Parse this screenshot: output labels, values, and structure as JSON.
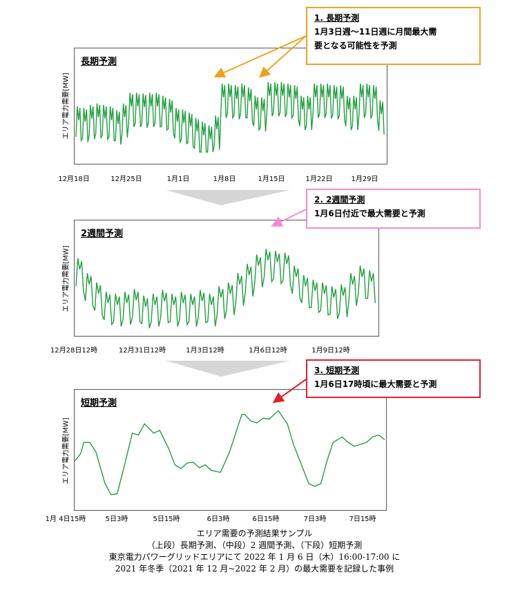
{
  "colors": {
    "series": "#1e9e3e",
    "orange": "#f0a020",
    "pink": "#f08ad8",
    "red": "#e0202a",
    "arrow_grey": "#cccccc"
  },
  "chart_data": [
    {
      "type": "line",
      "title": "長期予測",
      "ylabel": "エリア電力需要[MW]",
      "xlabel": "",
      "x_ticks": [
        "12月18日",
        "12月25日",
        "1月1日",
        "1月8日",
        "1月15日",
        "1月22日",
        "1月29日"
      ],
      "x_range": [
        "12月17日",
        "1月30日"
      ],
      "pattern": "daily cycle, 2 peaks per day; lower in 12/18-1/3, high plateau 1/3-1/11 and 1/11-1/30",
      "series": [
        {
          "daily_peak_rel": [
            0.6,
            0.58,
            0.62,
            0.64,
            0.62,
            0.6,
            0.55,
            0.64,
            0.78,
            0.78,
            0.77,
            0.78,
            0.78,
            0.74,
            0.7,
            0.58,
            0.56,
            0.52,
            0.45,
            0.4,
            0.35,
            0.48,
            0.9,
            0.9,
            0.88,
            0.9,
            0.85,
            0.74,
            0.72,
            0.92,
            0.92,
            0.92,
            0.9,
            0.88,
            0.74,
            0.74,
            0.9,
            0.9,
            0.9,
            0.88,
            0.88,
            0.74,
            0.74,
            0.9,
            0.9,
            0.88,
            0.68
          ]
        }
      ]
    },
    {
      "type": "line",
      "title": "2週間予測",
      "ylabel": "エリア電力需要[MW]",
      "xlabel": "",
      "x_ticks": [
        "12月28日12時",
        "12月31日12時",
        "1月3日12時",
        "1月6日12時",
        "1月9日12時"
      ],
      "series": [
        {
          "daily_peak_rel": [
            0.78,
            0.62,
            0.52,
            0.42,
            0.4,
            0.42,
            0.45,
            0.38,
            0.4,
            0.44,
            0.4,
            0.42,
            0.4,
            0.44,
            0.4,
            0.48,
            0.52,
            0.62,
            0.72,
            0.82,
            0.88,
            0.86,
            0.84,
            0.7,
            0.6,
            0.55,
            0.52,
            0.48,
            0.5,
            0.62,
            0.7,
            0.65
          ]
        }
      ]
    },
    {
      "type": "line",
      "title": "短期予測",
      "ylabel": "エリア電力需要[MW]",
      "xlabel": "",
      "x_ticks": [
        "1月 4日15時",
        "5日3時",
        "5日15時",
        "6日3時",
        "6日15時",
        "7日3時",
        "7日15時"
      ],
      "series": [
        {
          "values_rel": [
            [
              0,
              0.42
            ],
            [
              1,
              0.5
            ],
            [
              1.5,
              0.62
            ],
            [
              2.5,
              0.62
            ],
            [
              3.5,
              0.52
            ],
            [
              5,
              0.18
            ],
            [
              6,
              0.06
            ],
            [
              7,
              0.07
            ],
            [
              8,
              0.32
            ],
            [
              9.5,
              0.72
            ],
            [
              10.5,
              0.7
            ],
            [
              11.5,
              0.82
            ],
            [
              13,
              0.72
            ],
            [
              14,
              0.75
            ],
            [
              15.5,
              0.55
            ],
            [
              16.5,
              0.38
            ],
            [
              17.5,
              0.34
            ],
            [
              18.5,
              0.4
            ],
            [
              19.5,
              0.41
            ],
            [
              20.5,
              0.35
            ],
            [
              21.5,
              0.38
            ],
            [
              22.5,
              0.32
            ],
            [
              24,
              0.3
            ],
            [
              25.5,
              0.52
            ],
            [
              27.5,
              0.92
            ],
            [
              28,
              0.92
            ],
            [
              29,
              0.85
            ],
            [
              30,
              0.83
            ],
            [
              31,
              0.88
            ],
            [
              32,
              0.87
            ],
            [
              33.5,
              0.96
            ],
            [
              35,
              0.82
            ],
            [
              36,
              0.6
            ],
            [
              37.5,
              0.35
            ],
            [
              38.5,
              0.18
            ],
            [
              39.5,
              0.15
            ],
            [
              40.5,
              0.18
            ],
            [
              41.5,
              0.42
            ],
            [
              42.5,
              0.62
            ],
            [
              44,
              0.68
            ],
            [
              45,
              0.62
            ],
            [
              46,
              0.58
            ],
            [
              47,
              0.6
            ],
            [
              48,
              0.62
            ],
            [
              49,
              0.68
            ],
            [
              50,
              0.7
            ],
            [
              51,
              0.65
            ]
          ]
        }
      ]
    }
  ],
  "callouts": [
    {
      "head": "1. 長期予測",
      "lines": [
        "1月3日週～11日週に月間最大需",
        "要となる可能性を予測"
      ]
    },
    {
      "head": "2. 2週間予測",
      "lines": [
        "1月6日付近で最大需要と予測"
      ]
    },
    {
      "head": "3. 短期予測",
      "lines": [
        "1月6日17時頃に最大需要と予測"
      ]
    }
  ],
  "caption": [
    "エリア需要の予測結果サンプル",
    "（上段）長期予測、（中段）2 週間予測、（下段）短期予測",
    "東京電力パワーグリッドエリアにて 2022 年 1 月 6 日（木）16:00-17:00 に",
    "2021 年冬季（2021 年 12 月~2022 年 2 月）の最大需要を記録した事例"
  ]
}
